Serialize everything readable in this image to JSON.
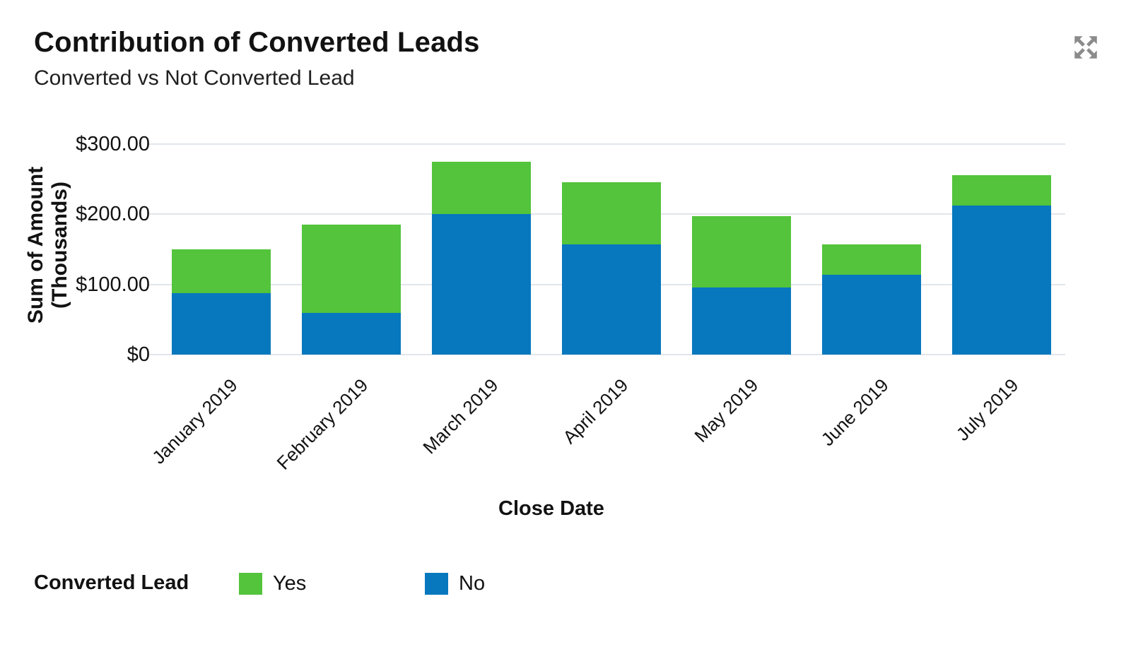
{
  "header": {
    "title": "Contribution of Converted Leads",
    "subtitle": "Converted vs Not Converted Lead"
  },
  "icons": {
    "expand": "expand-arrows-icon",
    "expand_color": "#8b8b8b"
  },
  "colors": {
    "yes_green": "#53c43b",
    "no_blue": "#0778be",
    "gridline": "#e1e6eb",
    "text": "#121212"
  },
  "chart_data": {
    "type": "bar",
    "stacked": true,
    "title": "Contribution of Converted Leads",
    "subtitle": "Converted vs Not Converted Lead",
    "categories": [
      "January 2019",
      "February 2019",
      "March 2019",
      "April 2019",
      "May 2019",
      "June 2019",
      "July 2019"
    ],
    "series": [
      {
        "name": "No",
        "color": "#0778be",
        "values": [
          88,
          59,
          200,
          157,
          96,
          114,
          212
        ]
      },
      {
        "name": "Yes",
        "color": "#53c43b",
        "values": [
          62,
          126,
          75,
          89,
          101,
          43,
          44
        ]
      }
    ],
    "totals": [
      150,
      185,
      275,
      246,
      197,
      157,
      256
    ],
    "units": "thousands of dollars",
    "xlabel": "Close Date",
    "ylabel": "Sum of Amount (Thousands)",
    "ylabel_lines": [
      "Sum of  Amount",
      "(Thousands)"
    ],
    "ylim": [
      0,
      300
    ],
    "yticks": [
      {
        "value": 0,
        "label": "$0"
      },
      {
        "value": 100,
        "label": "$100.00"
      },
      {
        "value": 200,
        "label": "$200.00"
      },
      {
        "value": 300,
        "label": "$300.00"
      }
    ],
    "grid": true,
    "legend": {
      "title": "Converted Lead",
      "position": "bottom-left",
      "items": [
        {
          "label": "Yes",
          "color": "#53c43b"
        },
        {
          "label": "No",
          "color": "#0778be"
        }
      ]
    }
  }
}
